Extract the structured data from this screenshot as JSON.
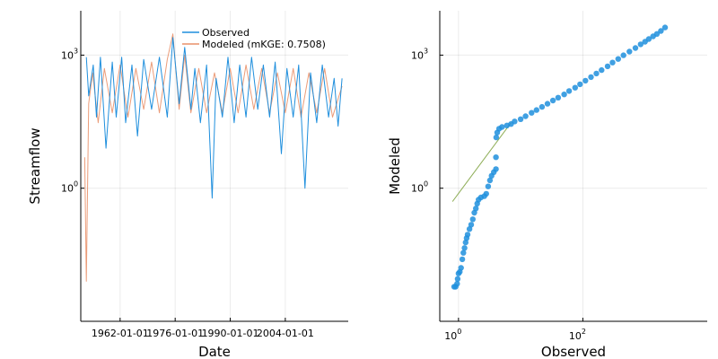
{
  "colors": {
    "observed": "#1f8fdd",
    "modeled": "#e9916a",
    "scatter": "#1f8fdd",
    "one_to_one": "#8fae58"
  },
  "chart_data": [
    {
      "type": "line",
      "title": "",
      "xlabel": "Date",
      "ylabel": "Streamflow",
      "x_range": [
        "1952-01-01",
        "2020-01-01"
      ],
      "y_scale": "log10",
      "ylim": [
        0.001,
        10000
      ],
      "grid": true,
      "legend_position": "top-right",
      "xtick_labels": [
        "1962-01-01",
        "1976-01-01",
        "1990-01-01",
        "2004-01-01"
      ],
      "ytick_labels": [
        {
          "base": "10",
          "exp": "0",
          "value": 1
        },
        {
          "base": "10",
          "exp": "3",
          "value": 1000
        }
      ],
      "series": [
        {
          "name": "Observed",
          "color_key": "observed",
          "points": [
            [
              "1953-06-01",
              900
            ],
            [
              "1954-01-01",
              120
            ],
            [
              "1955-03-01",
              600
            ],
            [
              "1956-01-01",
              40
            ],
            [
              "1957-01-01",
              900
            ],
            [
              "1958-06-01",
              8
            ],
            [
              "1960-01-01",
              700
            ],
            [
              "1961-01-01",
              40
            ],
            [
              "1962-06-01",
              900
            ],
            [
              "1963-06-01",
              30
            ],
            [
              "1965-01-01",
              600
            ],
            [
              "1966-06-01",
              15
            ],
            [
              "1968-01-01",
              800
            ],
            [
              "1970-01-01",
              60
            ],
            [
              "1972-01-01",
              900
            ],
            [
              "1974-01-01",
              40
            ],
            [
              "1975-06-01",
              2500
            ],
            [
              "1977-01-01",
              80
            ],
            [
              "1978-06-01",
              1500
            ],
            [
              "1980-01-01",
              60
            ],
            [
              "1981-01-01",
              500
            ],
            [
              "1982-06-01",
              30
            ],
            [
              "1984-01-01",
              600
            ],
            [
              "1985-06-01",
              0.6
            ],
            [
              "1986-06-01",
              300
            ],
            [
              "1988-01-01",
              40
            ],
            [
              "1989-06-01",
              900
            ],
            [
              "1991-01-01",
              30
            ],
            [
              "1992-06-01",
              600
            ],
            [
              "1994-01-01",
              40
            ],
            [
              "1995-06-01",
              900
            ],
            [
              "1997-01-01",
              60
            ],
            [
              "1998-06-01",
              600
            ],
            [
              "2000-01-01",
              40
            ],
            [
              "2001-06-01",
              700
            ],
            [
              "2003-01-01",
              6
            ],
            [
              "2004-06-01",
              500
            ],
            [
              "2006-01-01",
              40
            ],
            [
              "2007-06-01",
              600
            ],
            [
              "2009-01-01",
              1
            ],
            [
              "2010-06-01",
              400
            ],
            [
              "2012-01-01",
              30
            ],
            [
              "2013-06-01",
              600
            ],
            [
              "2015-01-01",
              40
            ],
            [
              "2016-06-01",
              300
            ],
            [
              "2017-06-01",
              25
            ],
            [
              "2018-06-01",
              300
            ]
          ]
        },
        {
          "name": "Modeled (mKGE: 0.7508)",
          "color_key": "modeled",
          "points": [
            [
              "1953-01-01",
              5
            ],
            [
              "1953-06-01",
              0.008
            ],
            [
              "1954-01-01",
              80
            ],
            [
              "1955-01-01",
              400
            ],
            [
              "1956-06-01",
              30
            ],
            [
              "1958-01-01",
              500
            ],
            [
              "1960-01-01",
              50
            ],
            [
              "1962-01-01",
              600
            ],
            [
              "1964-01-01",
              40
            ],
            [
              "1966-01-01",
              500
            ],
            [
              "1968-01-01",
              60
            ],
            [
              "1970-01-01",
              700
            ],
            [
              "1972-01-01",
              50
            ],
            [
              "1974-01-01",
              800
            ],
            [
              "1975-06-01",
              3000
            ],
            [
              "1977-01-01",
              60
            ],
            [
              "1978-06-01",
              1000
            ],
            [
              "1980-01-01",
              50
            ],
            [
              "1982-01-01",
              500
            ],
            [
              "1984-01-01",
              50
            ],
            [
              "1986-01-01",
              400
            ],
            [
              "1988-01-01",
              50
            ],
            [
              "1990-01-01",
              500
            ],
            [
              "1992-01-01",
              50
            ],
            [
              "1994-01-01",
              600
            ],
            [
              "1996-01-01",
              60
            ],
            [
              "1998-01-01",
              500
            ],
            [
              "2000-01-01",
              50
            ],
            [
              "2002-01-01",
              400
            ],
            [
              "2004-01-01",
              50
            ],
            [
              "2006-01-01",
              500
            ],
            [
              "2008-01-01",
              40
            ],
            [
              "2010-01-01",
              400
            ],
            [
              "2012-01-01",
              50
            ],
            [
              "2014-01-01",
              500
            ],
            [
              "2016-01-01",
              40
            ],
            [
              "2018-06-01",
              200
            ]
          ]
        }
      ]
    },
    {
      "type": "scatter",
      "title": "",
      "xlabel": "Observed",
      "ylabel": "Modeled",
      "x_scale": "log10",
      "y_scale": "log10",
      "xlim": [
        0.5,
        10000
      ],
      "ylim": [
        0.001,
        10000
      ],
      "grid": true,
      "one_to_one_line": {
        "x": [
          0.8,
          7
        ],
        "y": [
          0.5,
          30
        ]
      },
      "xtick_labels": [
        {
          "base": "10",
          "exp": "0",
          "value": 1
        },
        {
          "base": "10",
          "exp": "2",
          "value": 100
        }
      ],
      "ytick_labels": [
        {
          "base": "10",
          "exp": "0",
          "value": 1
        },
        {
          "base": "10",
          "exp": "3",
          "value": 1000
        }
      ],
      "points": [
        [
          0.85,
          0.006
        ],
        [
          0.9,
          0.006
        ],
        [
          0.95,
          0.007
        ],
        [
          0.97,
          0.009
        ],
        [
          1.0,
          0.012
        ],
        [
          1.05,
          0.013
        ],
        [
          1.1,
          0.016
        ],
        [
          1.15,
          0.025
        ],
        [
          1.2,
          0.035
        ],
        [
          1.25,
          0.045
        ],
        [
          1.3,
          0.06
        ],
        [
          1.35,
          0.075
        ],
        [
          1.4,
          0.09
        ],
        [
          1.5,
          0.12
        ],
        [
          1.6,
          0.15
        ],
        [
          1.7,
          0.2
        ],
        [
          1.8,
          0.28
        ],
        [
          1.9,
          0.35
        ],
        [
          2.0,
          0.45
        ],
        [
          2.1,
          0.55
        ],
        [
          2.3,
          0.62
        ],
        [
          2.6,
          0.66
        ],
        [
          2.8,
          0.75
        ],
        [
          3.0,
          1.1
        ],
        [
          3.2,
          1.5
        ],
        [
          3.4,
          1.9
        ],
        [
          3.7,
          2.3
        ],
        [
          4.0,
          2.7
        ],
        [
          4.0,
          5
        ],
        [
          4.05,
          14
        ],
        [
          4.2,
          18
        ],
        [
          4.5,
          22
        ],
        [
          5,
          24
        ],
        [
          6,
          26
        ],
        [
          7,
          28
        ],
        [
          8,
          32
        ],
        [
          10,
          36
        ],
        [
          12,
          42
        ],
        [
          15,
          50
        ],
        [
          18,
          58
        ],
        [
          22,
          68
        ],
        [
          27,
          80
        ],
        [
          33,
          95
        ],
        [
          40,
          110
        ],
        [
          50,
          130
        ],
        [
          60,
          155
        ],
        [
          75,
          185
        ],
        [
          90,
          220
        ],
        [
          110,
          265
        ],
        [
          135,
          320
        ],
        [
          165,
          385
        ],
        [
          200,
          460
        ],
        [
          250,
          560
        ],
        [
          300,
          680
        ],
        [
          370,
          820
        ],
        [
          450,
          990
        ],
        [
          560,
          1200
        ],
        [
          700,
          1450
        ],
        [
          850,
          1750
        ],
        [
          1000,
          2000
        ],
        [
          1150,
          2300
        ],
        [
          1350,
          2650
        ],
        [
          1550,
          3000
        ],
        [
          1800,
          3500
        ],
        [
          2100,
          4200
        ]
      ]
    }
  ]
}
